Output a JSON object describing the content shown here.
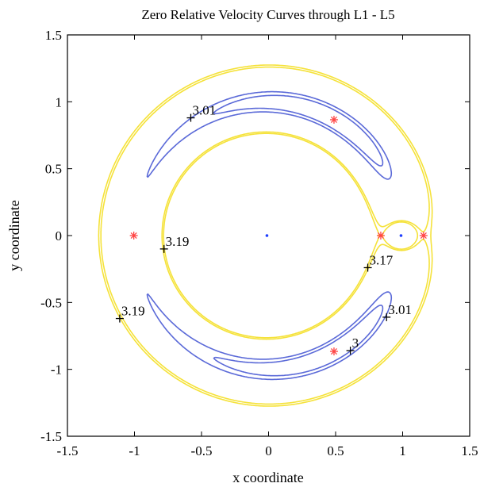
{
  "chart_data": {
    "type": "line",
    "title": "Zero Relative Velocity Curves through L1 - L5",
    "xlabel": "x coordinate",
    "ylabel": "y coordinate",
    "xlim": [
      -1.5,
      1.5
    ],
    "ylim": [
      -1.5,
      1.5
    ],
    "xticks": [
      -1.5,
      -1,
      -0.5,
      0,
      0.5,
      1,
      1.5
    ],
    "yticks": [
      -1.5,
      -1,
      -0.5,
      0,
      0.5,
      1,
      1.5
    ],
    "xtick_labels": [
      "-1.5",
      "-1",
      "-0.5",
      "0",
      "0.5",
      "1",
      "1.5"
    ],
    "ytick_labels": [
      "-1.5",
      "-1",
      "-0.5",
      "0",
      "0.5",
      "1",
      "1.5"
    ],
    "grid": false,
    "mu": 0.0121,
    "series": [
      {
        "color": "#f5e23a",
        "contour_levels": [
          3.17,
          3.19
        ]
      },
      {
        "color": "#5b6ad8",
        "contour_levels": [
          3.0,
          3.01
        ]
      }
    ],
    "primaries": [
      {
        "x": -0.0121,
        "y": 0,
        "color": "#1f3fff"
      },
      {
        "x": 0.9879,
        "y": 0,
        "color": "#1f3fff"
      }
    ],
    "lagrange_points": {
      "color": "#ff4444",
      "points": [
        {
          "x": 0.837,
          "y": 0
        },
        {
          "x": 1.156,
          "y": 0
        },
        {
          "x": -1.005,
          "y": 0
        },
        {
          "x": 0.488,
          "y": 0.866
        },
        {
          "x": 0.488,
          "y": -0.866
        }
      ]
    },
    "annotations": [
      {
        "text": "3.01",
        "x": -0.58,
        "y": 0.88
      },
      {
        "text": "3.19",
        "x": -0.78,
        "y": -0.1
      },
      {
        "text": "3.19",
        "x": -1.11,
        "y": -0.62
      },
      {
        "text": "3.17",
        "x": 0.74,
        "y": -0.24
      },
      {
        "text": "3.01",
        "x": 0.88,
        "y": -0.61
      },
      {
        "text": "3",
        "x": 0.61,
        "y": -0.86
      }
    ]
  }
}
